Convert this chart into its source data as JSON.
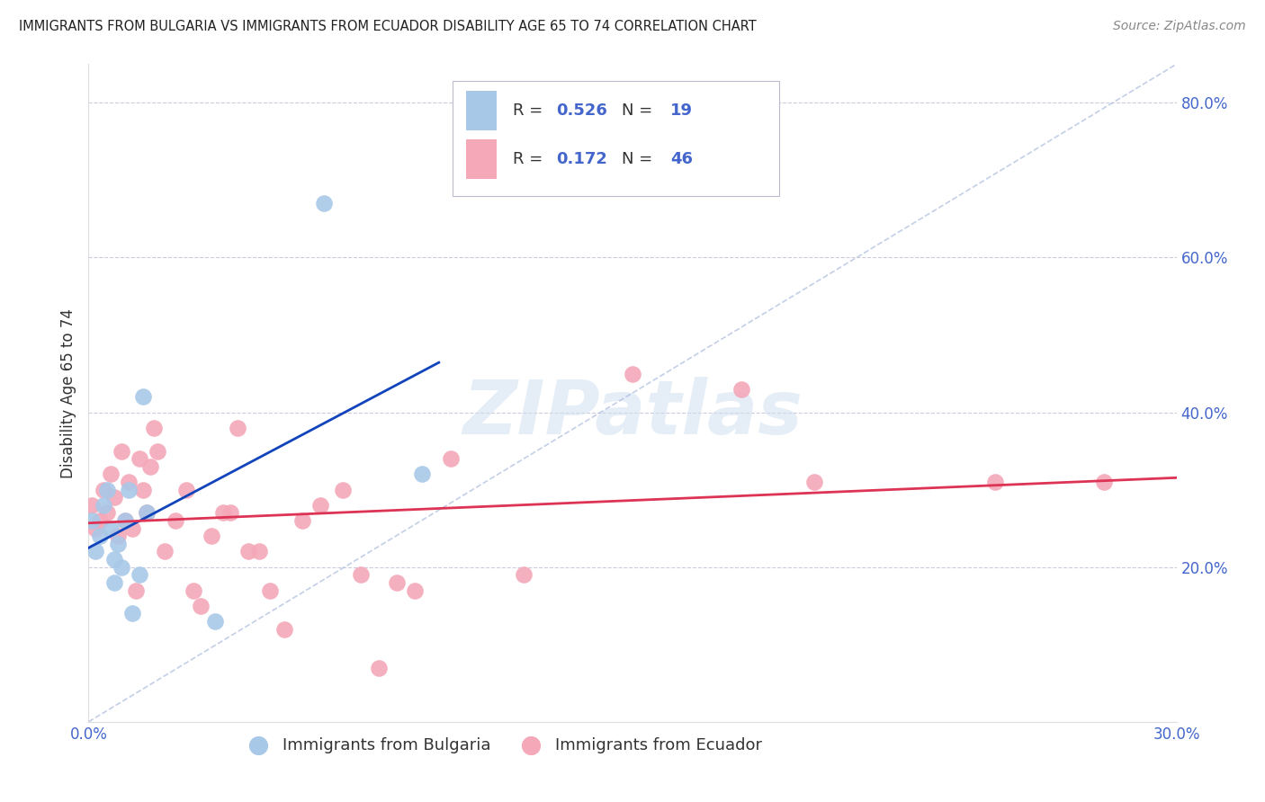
{
  "title": "IMMIGRANTS FROM BULGARIA VS IMMIGRANTS FROM ECUADOR DISABILITY AGE 65 TO 74 CORRELATION CHART",
  "source": "Source: ZipAtlas.com",
  "ylabel": "Disability Age 65 to 74",
  "xlim": [
    0.0,
    0.3
  ],
  "ylim": [
    0.0,
    0.85
  ],
  "xticks": [
    0.0,
    0.05,
    0.1,
    0.15,
    0.2,
    0.25,
    0.3
  ],
  "yticks": [
    0.0,
    0.2,
    0.4,
    0.6,
    0.8
  ],
  "legend_r1": "0.526",
  "legend_n1": "19",
  "legend_r2": "0.172",
  "legend_n2": "46",
  "bulgaria_color": "#a8c8e8",
  "ecuador_color": "#f4a8b8",
  "trend_bulgaria_color": "#1144bb",
  "trend_ecuador_color": "#dd3355",
  "diag_color": "#aabbdd",
  "tick_color": "#4466cc",
  "watermark": "ZIPatlas",
  "bulgaria_x": [
    0.001,
    0.002,
    0.003,
    0.004,
    0.005,
    0.006,
    0.007,
    0.007,
    0.008,
    0.009,
    0.01,
    0.011,
    0.012,
    0.014,
    0.015,
    0.016,
    0.065,
    0.092,
    0.035
  ],
  "bulgaria_y": [
    0.26,
    0.22,
    0.24,
    0.28,
    0.3,
    0.25,
    0.21,
    0.18,
    0.23,
    0.2,
    0.26,
    0.3,
    0.14,
    0.19,
    0.42,
    0.27,
    0.67,
    0.32,
    0.13
  ],
  "ecuador_x": [
    0.001,
    0.002,
    0.003,
    0.004,
    0.005,
    0.006,
    0.007,
    0.008,
    0.009,
    0.01,
    0.011,
    0.012,
    0.013,
    0.014,
    0.015,
    0.016,
    0.017,
    0.018,
    0.019,
    0.021,
    0.024,
    0.027,
    0.029,
    0.031,
    0.034,
    0.037,
    0.039,
    0.041,
    0.044,
    0.047,
    0.05,
    0.054,
    0.059,
    0.064,
    0.07,
    0.075,
    0.08,
    0.085,
    0.09,
    0.1,
    0.12,
    0.15,
    0.18,
    0.2,
    0.25,
    0.28
  ],
  "ecuador_y": [
    0.28,
    0.25,
    0.26,
    0.3,
    0.27,
    0.32,
    0.29,
    0.24,
    0.35,
    0.26,
    0.31,
    0.25,
    0.17,
    0.34,
    0.3,
    0.27,
    0.33,
    0.38,
    0.35,
    0.22,
    0.26,
    0.3,
    0.17,
    0.15,
    0.24,
    0.27,
    0.27,
    0.38,
    0.22,
    0.22,
    0.17,
    0.12,
    0.26,
    0.28,
    0.3,
    0.19,
    0.07,
    0.18,
    0.17,
    0.34,
    0.19,
    0.45,
    0.43,
    0.31,
    0.31,
    0.31
  ]
}
